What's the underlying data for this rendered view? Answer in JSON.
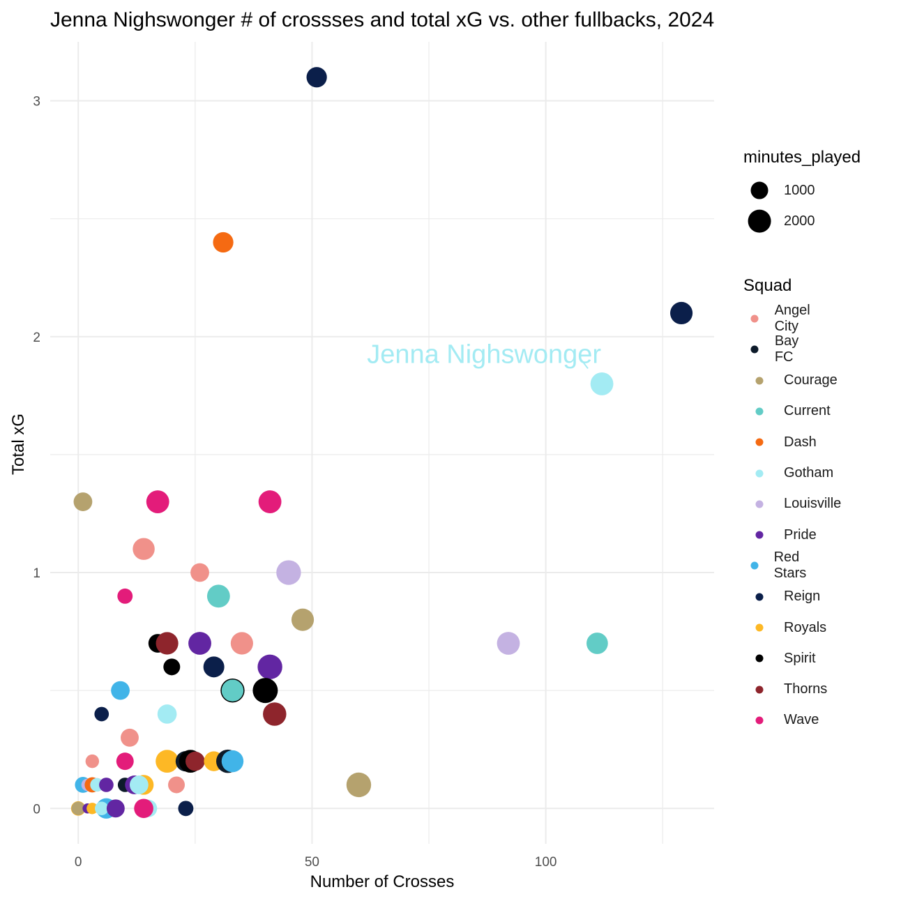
{
  "chart_data": {
    "type": "scatter",
    "title": "Jenna Nighswonger # of crossses and total xG vs. other fullbacks, 2024",
    "xlabel": "Number of Crosses",
    "ylabel": "Total xG",
    "xlim": [
      -6,
      136
    ],
    "ylim": [
      -0.15,
      3.25
    ],
    "x_ticks": [
      0,
      50,
      100
    ],
    "y_ticks": [
      0,
      1,
      2,
      3
    ],
    "grid": true,
    "legend_placement": "right",
    "size_legend": {
      "title": "minutes_played",
      "entries": [
        {
          "label": "1000",
          "minutes": 1000
        },
        {
          "label": "2000",
          "minutes": 2000
        }
      ]
    },
    "color_legend": {
      "title": "Squad",
      "entries": [
        {
          "label": "Angel City",
          "color": "#F0918A"
        },
        {
          "label": "Bay FC",
          "color": "#0D1B2A"
        },
        {
          "label": "Courage",
          "color": "#B5A26E"
        },
        {
          "label": "Current",
          "color": "#62CCC6"
        },
        {
          "label": "Dash",
          "color": "#F56A12"
        },
        {
          "label": "Gotham",
          "color": "#A3EBF3"
        },
        {
          "label": "Louisville",
          "color": "#C4B2E2"
        },
        {
          "label": "Pride",
          "color": "#6226A2"
        },
        {
          "label": "Red Stars",
          "color": "#41B4E8"
        },
        {
          "label": "Reign",
          "color": "#0B1F4A"
        },
        {
          "label": "Royals",
          "color": "#FDB825"
        },
        {
          "label": "Spirit",
          "color": "#000000"
        },
        {
          "label": "Thorns",
          "color": "#8E252C"
        },
        {
          "label": "Wave",
          "color": "#E31C7A"
        }
      ]
    },
    "annotation": {
      "text": "Jenna Nighswonger",
      "x": 112,
      "y": 1.8,
      "color": "#A3EBF3"
    },
    "points": [
      {
        "squad": "Reign",
        "x": 51,
        "y": 3.1,
        "minutes": 1500
      },
      {
        "squad": "Dash",
        "x": 31,
        "y": 2.4,
        "minutes": 1500
      },
      {
        "squad": "Reign",
        "x": 129,
        "y": 2.1,
        "minutes": 1900
      },
      {
        "squad": "Gotham",
        "x": 112,
        "y": 1.8,
        "minutes": 2000
      },
      {
        "squad": "Courage",
        "x": 1,
        "y": 1.3,
        "minutes": 1200
      },
      {
        "squad": "Wave",
        "x": 17,
        "y": 1.3,
        "minutes": 2000
      },
      {
        "squad": "Wave",
        "x": 41,
        "y": 1.3,
        "minutes": 2000
      },
      {
        "squad": "Angel City",
        "x": 14,
        "y": 1.1,
        "minutes": 1800
      },
      {
        "squad": "Angel City",
        "x": 26,
        "y": 1.0,
        "minutes": 1200
      },
      {
        "squad": "Louisville",
        "x": 45,
        "y": 1.0,
        "minutes": 2400
      },
      {
        "squad": "Wave",
        "x": 10,
        "y": 0.9,
        "minutes": 700
      },
      {
        "squad": "Current",
        "x": 30,
        "y": 0.9,
        "minutes": 2000
      },
      {
        "squad": "Courage",
        "x": 48,
        "y": 0.8,
        "minutes": 1900
      },
      {
        "squad": "Spirit",
        "x": 17,
        "y": 0.7,
        "minutes": 1200
      },
      {
        "squad": "Thorns",
        "x": 19,
        "y": 0.7,
        "minutes": 1900
      },
      {
        "squad": "Pride",
        "x": 26,
        "y": 0.7,
        "minutes": 2000
      },
      {
        "squad": "Angel City",
        "x": 35,
        "y": 0.7,
        "minutes": 1900
      },
      {
        "squad": "Louisville",
        "x": 92,
        "y": 0.7,
        "minutes": 2000
      },
      {
        "squad": "Current",
        "x": 111,
        "y": 0.7,
        "minutes": 1700
      },
      {
        "squad": "Spirit",
        "x": 20,
        "y": 0.6,
        "minutes": 900
      },
      {
        "squad": "Reign",
        "x": 29,
        "y": 0.6,
        "minutes": 1600
      },
      {
        "squad": "Pride",
        "x": 41,
        "y": 0.6,
        "minutes": 2400
      },
      {
        "squad": "Red Stars",
        "x": 9,
        "y": 0.5,
        "minutes": 1200
      },
      {
        "squad": "Current",
        "x": 33,
        "y": 0.5,
        "minutes": 2000,
        "outline": true
      },
      {
        "squad": "Spirit",
        "x": 40,
        "y": 0.5,
        "minutes": 2500
      },
      {
        "squad": "Reign",
        "x": 5,
        "y": 0.4,
        "minutes": 600
      },
      {
        "squad": "Gotham",
        "x": 19,
        "y": 0.4,
        "minutes": 1300
      },
      {
        "squad": "Thorns",
        "x": 42,
        "y": 0.4,
        "minutes": 2100
      },
      {
        "squad": "Angel City",
        "x": 11,
        "y": 0.3,
        "minutes": 1100
      },
      {
        "squad": "Angel City",
        "x": 3,
        "y": 0.2,
        "minutes": 500
      },
      {
        "squad": "Wave",
        "x": 10,
        "y": 0.2,
        "minutes": 1000
      },
      {
        "squad": "Royals",
        "x": 19,
        "y": 0.2,
        "minutes": 2000
      },
      {
        "squad": "Bay FC",
        "x": 23,
        "y": 0.2,
        "minutes": 1500
      },
      {
        "squad": "Spirit",
        "x": 24,
        "y": 0.2,
        "minutes": 2000
      },
      {
        "squad": "Thorns",
        "x": 25,
        "y": 0.2,
        "minutes": 1300
      },
      {
        "squad": "Royals",
        "x": 29,
        "y": 0.2,
        "minutes": 1400
      },
      {
        "squad": "Bay FC",
        "x": 32,
        "y": 0.2,
        "minutes": 2100
      },
      {
        "squad": "Red Stars",
        "x": 33,
        "y": 0.2,
        "minutes": 1800
      },
      {
        "squad": "Courage",
        "x": 60,
        "y": 0.1,
        "minutes": 2400
      },
      {
        "squad": "Red Stars",
        "x": 1,
        "y": 0.1,
        "minutes": 800
      },
      {
        "squad": "Louisville",
        "x": 2,
        "y": 0.1,
        "minutes": 400
      },
      {
        "squad": "Dash",
        "x": 3,
        "y": 0.1,
        "minutes": 700
      },
      {
        "squad": "Angel City",
        "x": 4,
        "y": 0.1,
        "minutes": 500
      },
      {
        "squad": "Gotham",
        "x": 4,
        "y": 0.1,
        "minutes": 500
      },
      {
        "squad": "Pride",
        "x": 6,
        "y": 0.1,
        "minutes": 600
      },
      {
        "squad": "Bay FC",
        "x": 10,
        "y": 0.1,
        "minutes": 600
      },
      {
        "squad": "Pride",
        "x": 12,
        "y": 0.1,
        "minutes": 1200
      },
      {
        "squad": "Royals",
        "x": 14,
        "y": 0.1,
        "minutes": 1400
      },
      {
        "squad": "Gotham",
        "x": 13,
        "y": 0.1,
        "minutes": 1200
      },
      {
        "squad": "Angel City",
        "x": 21,
        "y": 0.1,
        "minutes": 900
      },
      {
        "squad": "Royals",
        "x": 0,
        "y": 0.0,
        "minutes": 600
      },
      {
        "squad": "Courage",
        "x": 0,
        "y": 0.0,
        "minutes": 500
      },
      {
        "squad": "Pride",
        "x": 2,
        "y": 0.0,
        "minutes": 200
      },
      {
        "squad": "Royals",
        "x": 3,
        "y": 0.0,
        "minutes": 300
      },
      {
        "squad": "Red Stars",
        "x": 6,
        "y": 0.0,
        "minutes": 1500
      },
      {
        "squad": "Gotham",
        "x": 5,
        "y": 0.0,
        "minutes": 500
      },
      {
        "squad": "Pride",
        "x": 8,
        "y": 0.0,
        "minutes": 1100
      },
      {
        "squad": "Gotham",
        "x": 15,
        "y": 0.0,
        "minutes": 1000
      },
      {
        "squad": "Wave",
        "x": 14,
        "y": 0.0,
        "minutes": 1300
      },
      {
        "squad": "Reign",
        "x": 23,
        "y": 0.0,
        "minutes": 700
      }
    ]
  }
}
